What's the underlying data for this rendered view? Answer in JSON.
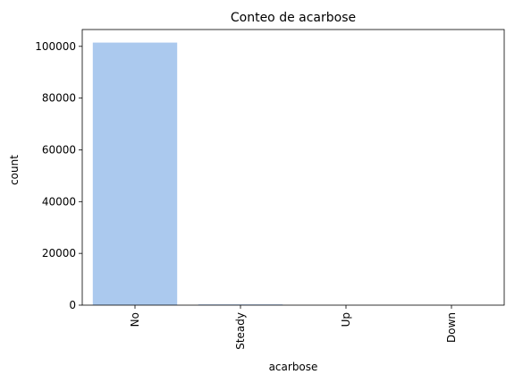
{
  "chart_data": {
    "type": "bar",
    "title": "Conteo de acarbose",
    "xlabel": "acarbose",
    "ylabel": "count",
    "categories": [
      "No",
      "Steady",
      "Up",
      "Down"
    ],
    "values": [
      101458,
      295,
      10,
      3
    ],
    "ylim": [
      0,
      106500
    ],
    "yticks": [
      0,
      20000,
      40000,
      60000,
      80000,
      100000
    ],
    "ytick_labels": [
      "0",
      "20000",
      "40000",
      "60000",
      "80000",
      "100000"
    ],
    "bar_color": "#abc9ee",
    "grid": false,
    "legend": "none"
  }
}
